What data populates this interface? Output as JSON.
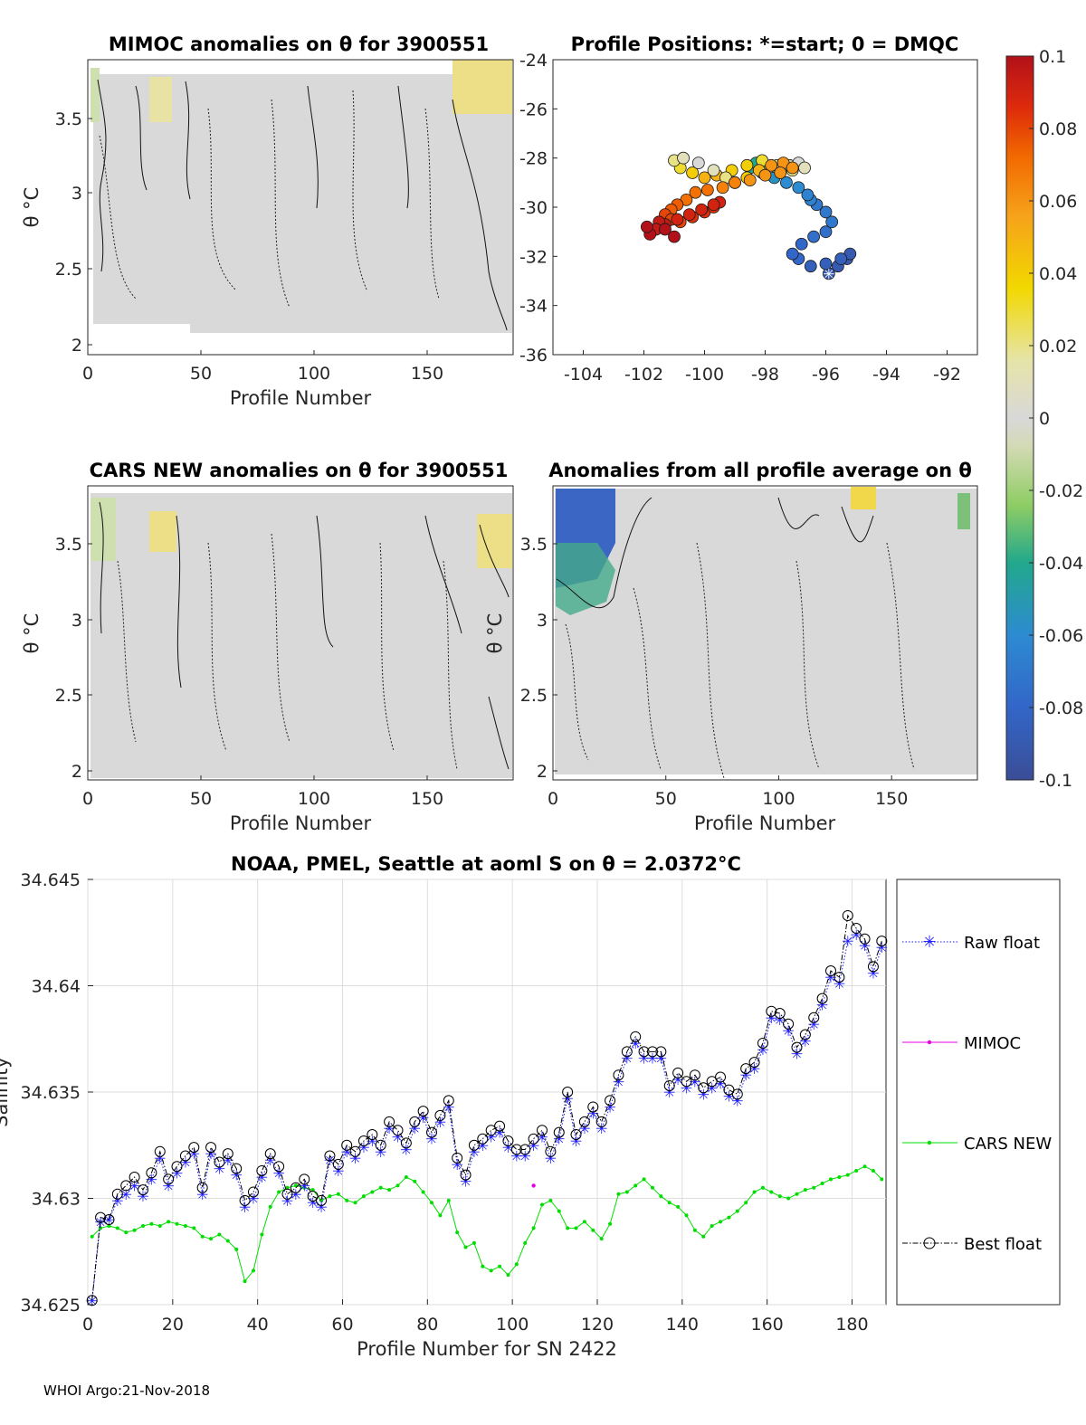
{
  "footer": "WHOI Argo:21-Nov-2018",
  "charts": {
    "mimoc": {
      "title": "MIMOC anomalies on θ  for 3900551",
      "xlabel": "Profile Number",
      "ylabel": "θ °C",
      "xticks": [
        "0",
        "50",
        "100",
        "150"
      ],
      "yticks": [
        "3.5",
        "3",
        "2.5",
        "2"
      ]
    },
    "positions": {
      "title": "Profile Positions: *=start; 0 = DMQC",
      "xticks": [
        "-104",
        "-102",
        "-100",
        "-98",
        "-96",
        "-94",
        "-92"
      ],
      "yticks": [
        "-24",
        "-26",
        "-28",
        "-30",
        "-32",
        "-34",
        "-36"
      ]
    },
    "cars": {
      "title": "CARS NEW anomalies on θ for 3900551",
      "xlabel": "Profile Number",
      "ylabel": "θ °C",
      "xticks": [
        "0",
        "50",
        "100",
        "150"
      ],
      "yticks": [
        "3.5",
        "3",
        "2.5",
        "2"
      ]
    },
    "allavg": {
      "title": "Anomalies from all profile average on θ",
      "xlabel": "Profile Number",
      "ylabel": "θ °C",
      "xticks": [
        "0",
        "50",
        "100",
        "150"
      ],
      "yticks": [
        "3.5",
        "3",
        "2.5",
        "2"
      ]
    },
    "colorbar": {
      "ticks": [
        "0.1",
        "0.08",
        "0.06",
        "0.04",
        "0.02",
        "0",
        "-0.02",
        "-0.04",
        "-0.06",
        "-0.08",
        "-0.1"
      ]
    },
    "salinity": {
      "title": "NOAA, PMEL, Seattle at aoml S on θ = 2.0372°C",
      "xlabel": "Profile Number for SN 2422",
      "ylabel": "Salinity",
      "xticks": [
        "0",
        "20",
        "40",
        "60",
        "80",
        "100",
        "120",
        "140",
        "160",
        "180"
      ],
      "yticks": [
        "34.645",
        "34.64",
        "34.635",
        "34.63",
        "34.625"
      ]
    }
  },
  "legend": {
    "raw": "Raw float",
    "mimoc": "MIMOC",
    "cars": "CARS NEW",
    "best": "Best float"
  },
  "chart_data": [
    {
      "type": "scatter",
      "name": "Profile Positions",
      "xlim": [
        -105,
        -91
      ],
      "ylim": [
        -36,
        -24
      ],
      "colormap_range": [
        -0.1,
        0.1
      ],
      "marker_start": "-95.9,-32.7",
      "x": [
        -95.9,
        -95.6,
        -95.3,
        -95.2,
        -95.5,
        -96.0,
        -96.5,
        -96.9,
        -97.1,
        -96.8,
        -96.4,
        -96.0,
        -95.8,
        -96.0,
        -96.3,
        -96.5,
        -96.6,
        -96.9,
        -97.3,
        -97.7,
        -98.1,
        -98.5,
        -98.3,
        -98.0,
        -97.6,
        -97.2,
        -96.9,
        -96.7,
        -97.1,
        -97.6,
        -98.1,
        -98.6,
        -99.1,
        -99.6,
        -100.0,
        -100.4,
        -100.8,
        -101.0,
        -100.7,
        -100.2,
        -99.7,
        -99.3,
        -99.0,
        -98.6,
        -98.2,
        -97.8,
        -97.4,
        -97.1,
        -97.5,
        -98.0,
        -98.5,
        -99.0,
        -99.4,
        -99.9,
        -100.3,
        -100.6,
        -100.9,
        -101.1,
        -101.3,
        -101.1,
        -100.8,
        -100.4,
        -100.0,
        -99.7,
        -99.5,
        -99.7,
        -100.1,
        -100.5,
        -100.9,
        -101.3,
        -101.5,
        -101.6,
        -101.8,
        -101.3,
        -101.0,
        -101.9
      ],
      "y": [
        -32.7,
        -32.4,
        -32.1,
        -31.9,
        -32.1,
        -32.3,
        -32.4,
        -32.1,
        -31.9,
        -31.5,
        -31.2,
        -31.0,
        -30.6,
        -30.2,
        -29.9,
        -29.7,
        -29.5,
        -29.2,
        -29.0,
        -28.8,
        -28.6,
        -28.4,
        -28.2,
        -28.3,
        -28.4,
        -28.3,
        -28.2,
        -28.4,
        -28.5,
        -28.3,
        -28.1,
        -28.3,
        -28.5,
        -28.7,
        -28.8,
        -28.6,
        -28.4,
        -28.1,
        -28.0,
        -28.2,
        -28.5,
        -28.8,
        -29.0,
        -28.8,
        -28.5,
        -28.3,
        -28.2,
        -28.4,
        -28.6,
        -28.7,
        -28.9,
        -29.0,
        -29.2,
        -29.3,
        -29.4,
        -29.7,
        -29.9,
        -30.1,
        -30.3,
        -30.5,
        -30.6,
        -30.4,
        -30.2,
        -30.0,
        -29.8,
        -29.9,
        -30.1,
        -30.3,
        -30.5,
        -30.7,
        -30.6,
        -30.9,
        -31.1,
        -30.9,
        -31.2,
        -30.8
      ],
      "c": [
        -0.09,
        -0.09,
        -0.09,
        -0.09,
        -0.085,
        -0.085,
        -0.085,
        -0.08,
        -0.08,
        -0.08,
        -0.075,
        -0.075,
        -0.07,
        -0.07,
        -0.07,
        -0.065,
        -0.065,
        -0.06,
        -0.06,
        -0.055,
        -0.05,
        -0.045,
        -0.04,
        -0.03,
        -0.02,
        -0.01,
        0.0,
        0.01,
        0.02,
        0.02,
        0.03,
        0.04,
        0.04,
        0.05,
        0.05,
        0.04,
        0.03,
        0.02,
        0.01,
        0.0,
        0.01,
        0.02,
        0.03,
        0.04,
        0.05,
        0.06,
        0.06,
        0.06,
        0.06,
        0.06,
        0.06,
        0.065,
        0.065,
        0.07,
        0.07,
        0.07,
        0.075,
        0.075,
        0.08,
        0.08,
        0.08,
        0.085,
        0.085,
        0.085,
        0.09,
        0.09,
        0.09,
        0.09,
        0.09,
        0.095,
        0.095,
        0.095,
        0.1,
        0.1,
        0.1,
        0.1
      ]
    },
    {
      "type": "line",
      "name": "salinity",
      "xlim": [
        0,
        188
      ],
      "ylim": [
        34.625,
        34.645
      ],
      "x": [
        1,
        3,
        5,
        7,
        9,
        11,
        13,
        15,
        17,
        19,
        21,
        23,
        25,
        27,
        29,
        31,
        33,
        35,
        37,
        39,
        41,
        43,
        45,
        47,
        49,
        51,
        53,
        55,
        57,
        59,
        61,
        63,
        65,
        67,
        69,
        71,
        73,
        75,
        77,
        79,
        81,
        83,
        85,
        87,
        89,
        91,
        93,
        95,
        97,
        99,
        101,
        103,
        105,
        107,
        109,
        111,
        113,
        115,
        117,
        119,
        121,
        123,
        125,
        127,
        129,
        131,
        133,
        135,
        137,
        139,
        141,
        143,
        145,
        147,
        149,
        151,
        153,
        155,
        157,
        159,
        161,
        163,
        165,
        167,
        169,
        171,
        173,
        175,
        177,
        179,
        181,
        183,
        185,
        187
      ],
      "series": [
        {
          "name": "Raw float",
          "values": [
            34.6252,
            34.6289,
            34.629,
            34.6299,
            34.6302,
            34.6306,
            34.6301,
            34.6309,
            34.6319,
            34.6306,
            34.6312,
            34.6317,
            34.6321,
            34.6302,
            34.6321,
            34.6314,
            34.6318,
            34.6311,
            34.6296,
            34.63,
            34.631,
            34.6318,
            34.6312,
            34.6299,
            34.6302,
            34.6306,
            34.6298,
            34.6296,
            34.6318,
            34.6313,
            34.6322,
            34.6319,
            34.6324,
            34.6327,
            34.6322,
            34.6333,
            34.6329,
            34.6323,
            34.6333,
            34.6338,
            34.6328,
            34.6336,
            34.6343,
            34.6316,
            34.6308,
            34.6322,
            34.6325,
            34.6329,
            34.6331,
            34.6324,
            34.632,
            34.632,
            34.6325,
            34.6329,
            34.6319,
            34.6328,
            34.6347,
            34.6327,
            34.6333,
            34.634,
            34.6333,
            34.6343,
            34.6355,
            34.6366,
            34.6373,
            34.6366,
            34.6366,
            34.6366,
            34.635,
            34.6356,
            34.6352,
            34.6355,
            34.6349,
            34.6352,
            34.6354,
            34.6348,
            34.6346,
            34.6358,
            34.6361,
            34.637,
            34.6385,
            34.6384,
            34.6379,
            34.6368,
            34.6374,
            34.6382,
            34.6391,
            34.6404,
            34.6401,
            34.6421,
            34.6424,
            34.6419,
            34.6406,
            34.6418
          ]
        },
        {
          "name": "Best float",
          "values": [
            34.6252,
            34.6291,
            34.629,
            34.6302,
            34.6306,
            34.631,
            34.6304,
            34.6312,
            34.6322,
            34.6309,
            34.6315,
            34.632,
            34.6324,
            34.6305,
            34.6324,
            34.6317,
            34.6321,
            34.6314,
            34.6299,
            34.6303,
            34.6313,
            34.6321,
            34.6315,
            34.6302,
            34.6305,
            34.6309,
            34.6301,
            34.6299,
            34.632,
            34.6316,
            34.6325,
            34.6322,
            34.6327,
            34.633,
            34.6325,
            34.6336,
            34.6332,
            34.6326,
            34.6336,
            34.6341,
            34.6331,
            34.6339,
            34.6346,
            34.6319,
            34.6311,
            34.6325,
            34.6328,
            34.6332,
            34.6334,
            34.6327,
            34.6323,
            34.6323,
            34.6328,
            34.6332,
            34.6322,
            34.6331,
            34.635,
            34.633,
            34.6336,
            34.6343,
            34.6336,
            34.6346,
            34.6358,
            34.6369,
            34.6376,
            34.6369,
            34.6369,
            34.6369,
            34.6353,
            34.6359,
            34.6355,
            34.6358,
            34.6352,
            34.6355,
            34.6357,
            34.6351,
            34.6349,
            34.6361,
            34.6364,
            34.6373,
            34.6388,
            34.6387,
            34.6382,
            34.6371,
            34.6377,
            34.6385,
            34.6394,
            34.6407,
            34.6404,
            34.6433,
            34.6427,
            34.6422,
            34.6409,
            34.6421
          ]
        },
        {
          "name": "CARS NEW",
          "values": [
            34.6282,
            34.6286,
            34.6287,
            34.6286,
            34.6284,
            34.6285,
            34.6287,
            34.6288,
            34.6287,
            34.6289,
            34.6288,
            34.6287,
            34.6286,
            34.6282,
            34.6281,
            34.6283,
            34.628,
            34.6276,
            34.6261,
            34.6266,
            34.6283,
            34.6296,
            34.6303,
            34.6305,
            34.6306,
            34.6305,
            34.6304,
            34.6299,
            34.6301,
            34.6302,
            34.6299,
            34.6298,
            34.6301,
            34.6303,
            34.6305,
            34.6304,
            34.6306,
            34.631,
            34.6308,
            34.6303,
            34.6298,
            34.6292,
            34.6299,
            34.6284,
            34.6277,
            34.6279,
            34.6268,
            34.6266,
            34.6268,
            34.6264,
            34.6269,
            34.6279,
            34.6286,
            34.6297,
            34.6299,
            34.6294,
            34.6286,
            34.6286,
            34.6289,
            34.6285,
            34.6281,
            34.6288,
            34.6302,
            34.6303,
            34.6306,
            34.6309,
            34.6305,
            34.6301,
            34.6298,
            34.6296,
            34.6292,
            34.6285,
            34.6282,
            34.6287,
            34.6289,
            34.6291,
            34.6294,
            34.6298,
            34.6303,
            34.6305,
            34.6303,
            34.6301,
            34.63,
            34.6302,
            34.6304,
            34.6305,
            34.6307,
            34.6309,
            34.631,
            34.6311,
            34.6313,
            34.6315,
            34.6313,
            34.6309
          ]
        },
        {
          "name": "MIMOC",
          "x": [
            105
          ],
          "values": [
            34.6306
          ]
        }
      ]
    },
    {
      "type": "heatmap",
      "name": "anomaly sections",
      "xlim": [
        0,
        188
      ],
      "ylim": [
        2,
        3.8
      ],
      "colormap_range": [
        -0.1,
        0.1
      ]
    }
  ]
}
